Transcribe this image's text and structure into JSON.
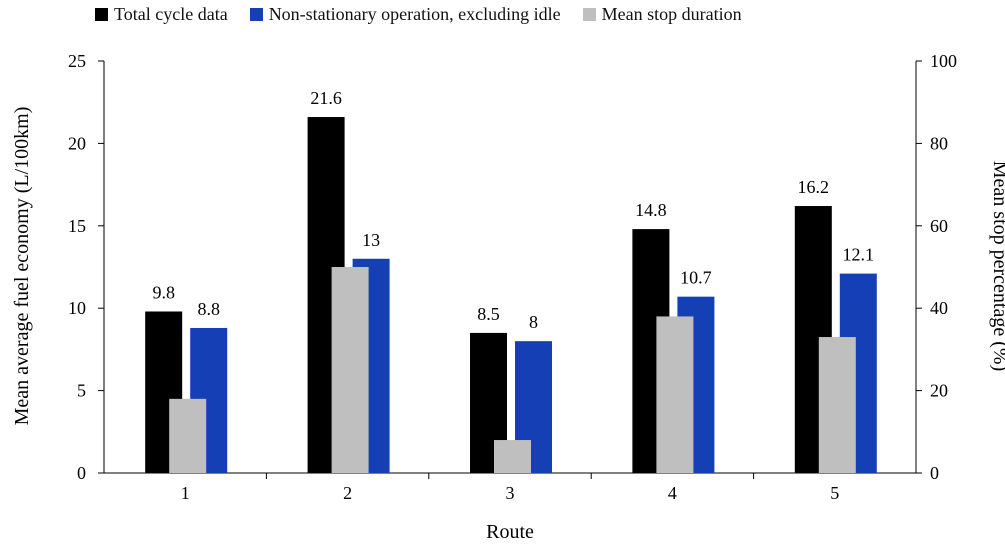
{
  "chart_data": {
    "type": "bar",
    "categories": [
      "1",
      "2",
      "3",
      "4",
      "5"
    ],
    "xlabel": "Route",
    "ylabel": "Mean average fuel economy (L/100km)",
    "y2label": "Mean stop percentage (%)",
    "ylim": [
      0,
      25
    ],
    "y2lim": [
      0,
      100
    ],
    "yticks": [
      0,
      5,
      10,
      15,
      20,
      25
    ],
    "y2ticks": [
      0,
      20,
      40,
      60,
      80,
      100
    ],
    "legend_position": "top",
    "grid": false,
    "series": [
      {
        "name": "Total cycle data",
        "axis": "left",
        "color": "#000000",
        "values": [
          9.8,
          21.6,
          8.5,
          14.8,
          16.2
        ],
        "labels": [
          "9.8",
          "21.6",
          "8.5",
          "14.8",
          "16.2"
        ]
      },
      {
        "name": "Non-stationary operation, excluding idle",
        "axis": "left",
        "color": "#1540b5",
        "values": [
          8.8,
          13,
          8,
          10.7,
          12.1
        ],
        "labels": [
          "8.8",
          "13",
          "8",
          "10.7",
          "12.1"
        ]
      },
      {
        "name": "Mean stop duration",
        "axis": "right",
        "color": "#bfbfbf",
        "values": [
          18,
          50,
          8,
          38,
          33
        ]
      }
    ]
  }
}
